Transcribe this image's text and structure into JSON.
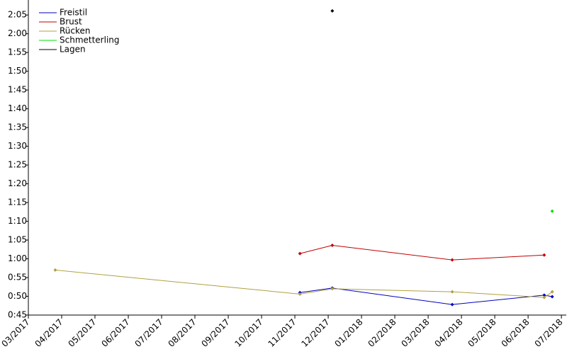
{
  "chart_data": {
    "type": "line",
    "xlim": [
      2017.1667,
      2018.514
    ],
    "xticks": [
      {
        "value": 2017.1667,
        "label": "03/2017"
      },
      {
        "value": 2017.25,
        "label": "04/2017"
      },
      {
        "value": 2017.3333,
        "label": "05/2017"
      },
      {
        "value": 2017.4167,
        "label": "06/2017"
      },
      {
        "value": 2017.5,
        "label": "07/2017"
      },
      {
        "value": 2017.5833,
        "label": "08/2017"
      },
      {
        "value": 2017.6667,
        "label": "09/2017"
      },
      {
        "value": 2017.75,
        "label": "10/2017"
      },
      {
        "value": 2017.8333,
        "label": "11/2017"
      },
      {
        "value": 2017.9167,
        "label": "12/2017"
      },
      {
        "value": 2018.0,
        "label": "01/2018"
      },
      {
        "value": 2018.0833,
        "label": "02/2018"
      },
      {
        "value": 2018.1667,
        "label": "03/2018"
      },
      {
        "value": 2018.25,
        "label": "04/2018"
      },
      {
        "value": 2018.3333,
        "label": "05/2018"
      },
      {
        "value": 2018.4167,
        "label": "06/2018"
      },
      {
        "value": 2018.5,
        "label": "07/2018"
      }
    ],
    "ylim": [
      45,
      129
    ],
    "yticks": [
      {
        "value": 45,
        "label": "0:45"
      },
      {
        "value": 50,
        "label": "0:50"
      },
      {
        "value": 55,
        "label": "0:55"
      },
      {
        "value": 60,
        "label": "1:00"
      },
      {
        "value": 65,
        "label": "1:05"
      },
      {
        "value": 70,
        "label": "1:10"
      },
      {
        "value": 75,
        "label": "1:15"
      },
      {
        "value": 80,
        "label": "1:20"
      },
      {
        "value": 85,
        "label": "1:25"
      },
      {
        "value": 90,
        "label": "1:30"
      },
      {
        "value": 95,
        "label": "1:35"
      },
      {
        "value": 100,
        "label": "1:40"
      },
      {
        "value": 105,
        "label": "1:45"
      },
      {
        "value": 110,
        "label": "1:50"
      },
      {
        "value": 115,
        "label": "1:55"
      },
      {
        "value": 120,
        "label": "2:00"
      },
      {
        "value": 125,
        "label": "2:05"
      }
    ],
    "legend": "upper-left",
    "series": [
      {
        "name": "Freistil",
        "color": "#0000c0",
        "x": [
          2017.846,
          2017.927,
          2018.227,
          2018.457,
          2018.477
        ],
        "values": [
          51.0,
          52.2,
          47.8,
          50.3,
          49.9
        ]
      },
      {
        "name": "Brust",
        "color": "#c00000",
        "x": [
          2017.846,
          2017.927,
          2018.227,
          2018.457
        ],
        "values": [
          61.4,
          63.6,
          59.7,
          61.0
        ]
      },
      {
        "name": "Rücken",
        "color": "#b0a040",
        "x": [
          2017.234,
          2017.846,
          2017.927,
          2018.227,
          2018.457,
          2018.477
        ],
        "values": [
          57.0,
          50.6,
          52.0,
          51.2,
          49.7,
          51.2
        ]
      },
      {
        "name": "Schmetterling",
        "color": "#00e000",
        "x": [
          2018.477
        ],
        "values": [
          72.7
        ]
      },
      {
        "name": "Lagen",
        "color": "#000000",
        "x": [
          2017.927
        ],
        "values": [
          126.1
        ]
      }
    ]
  }
}
